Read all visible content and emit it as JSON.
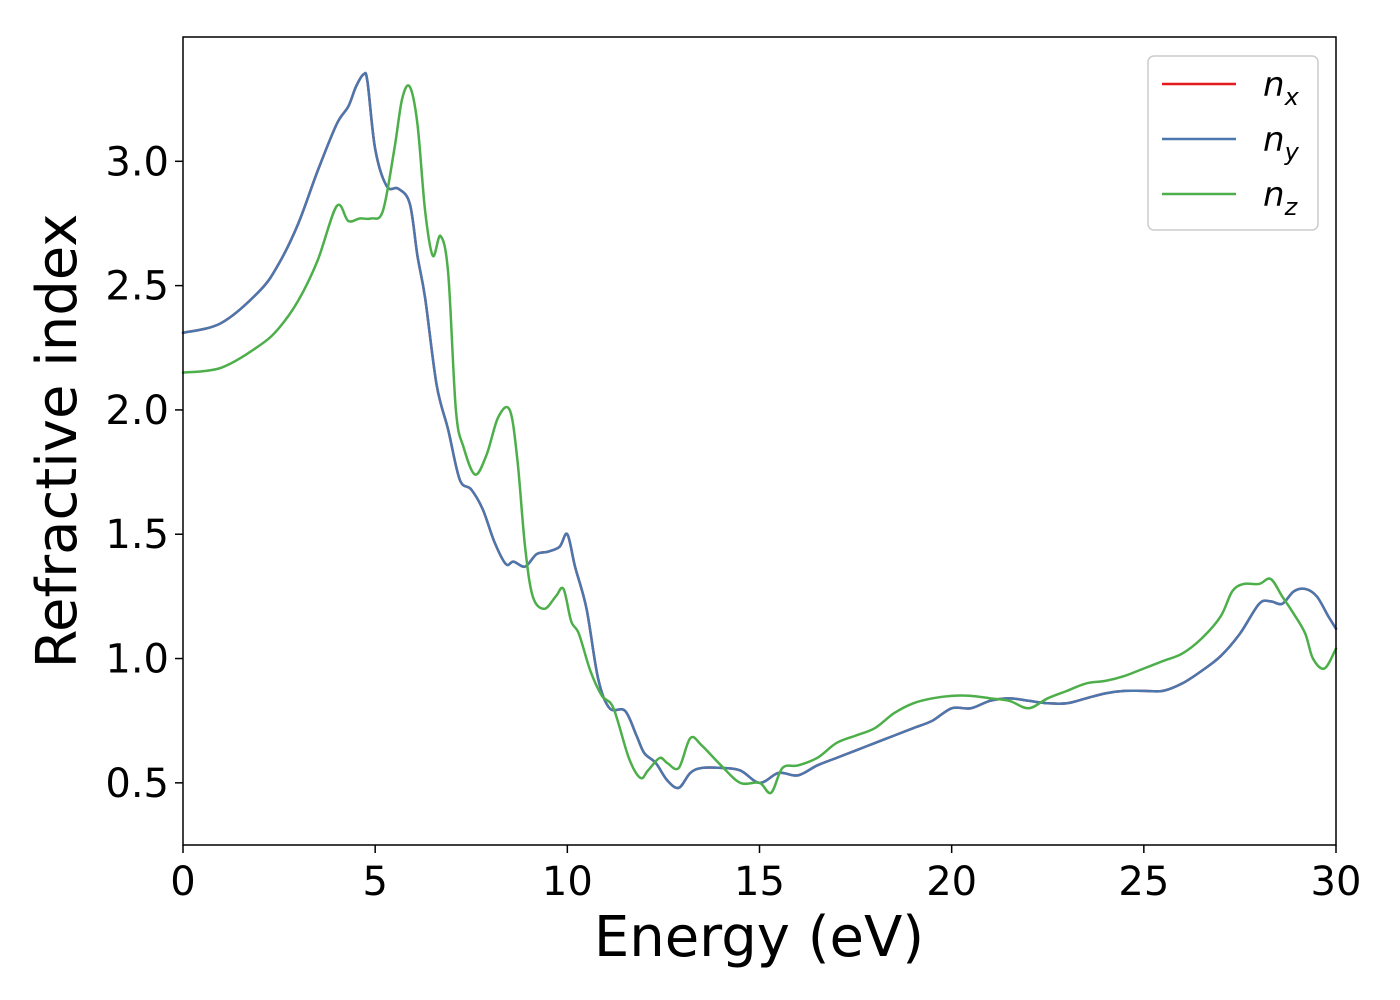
{
  "chart_data": {
    "type": "line",
    "title": "",
    "xlabel": "Energy (eV)",
    "ylabel": "Refractive index",
    "xlim": [
      0,
      30
    ],
    "ylim": [
      0.25,
      3.5
    ],
    "xticks": [
      0,
      5,
      10,
      15,
      20,
      25,
      30
    ],
    "xtick_labels": [
      "0",
      "5",
      "10",
      "15",
      "20",
      "25",
      "30"
    ],
    "yticks": [
      0.5,
      1.0,
      1.5,
      2.0,
      2.5,
      3.0
    ],
    "ytick_labels": [
      "0.5",
      "1.0",
      "1.5",
      "2.0",
      "2.5",
      "3.0"
    ],
    "grid": false,
    "legend_position": "top-right",
    "series": [
      {
        "name": "n_x",
        "legend_base": "n",
        "legend_sub": "x",
        "color": "#e41a1c",
        "x": [
          0,
          1,
          2,
          2.5,
          3,
          3.5,
          4,
          4.3,
          4.5,
          4.7,
          4.8,
          5.0,
          5.3,
          5.6,
          5.9,
          6.1,
          6.3,
          6.6,
          6.9,
          7.2,
          7.5,
          7.8,
          8.1,
          8.4,
          8.6,
          8.9,
          9.2,
          9.5,
          9.8,
          10.0,
          10.2,
          10.5,
          10.8,
          11.1,
          11.5,
          11.8,
          12.0,
          12.3,
          12.6,
          12.9,
          13.2,
          13.5,
          14.0,
          14.5,
          15.0,
          15.5,
          16.0,
          16.5,
          17.0,
          17.5,
          18.0,
          18.5,
          19.0,
          19.5,
          20.0,
          20.5,
          21.0,
          21.5,
          22.0,
          22.5,
          23.0,
          23.5,
          24.0,
          24.5,
          25.0,
          25.5,
          26.0,
          26.5,
          27.0,
          27.5,
          28.0,
          28.3,
          28.6,
          28.9,
          29.2,
          29.5,
          29.8,
          30.0
        ],
        "y": [
          2.31,
          2.35,
          2.48,
          2.59,
          2.75,
          2.96,
          3.15,
          3.22,
          3.3,
          3.35,
          3.32,
          3.05,
          2.9,
          2.89,
          2.83,
          2.62,
          2.45,
          2.1,
          1.92,
          1.72,
          1.68,
          1.6,
          1.47,
          1.38,
          1.39,
          1.37,
          1.42,
          1.43,
          1.45,
          1.5,
          1.37,
          1.2,
          0.92,
          0.8,
          0.79,
          0.69,
          0.62,
          0.58,
          0.51,
          0.48,
          0.54,
          0.56,
          0.56,
          0.55,
          0.5,
          0.54,
          0.53,
          0.57,
          0.6,
          0.63,
          0.66,
          0.69,
          0.72,
          0.75,
          0.8,
          0.8,
          0.83,
          0.84,
          0.83,
          0.82,
          0.82,
          0.84,
          0.86,
          0.87,
          0.87,
          0.87,
          0.9,
          0.95,
          1.01,
          1.1,
          1.22,
          1.23,
          1.22,
          1.27,
          1.28,
          1.25,
          1.17,
          1.12
        ]
      },
      {
        "name": "n_y",
        "legend_base": "n",
        "legend_sub": "y",
        "color": "#4a78ae",
        "x": [
          0,
          1,
          2,
          2.5,
          3,
          3.5,
          4,
          4.3,
          4.5,
          4.7,
          4.8,
          5.0,
          5.3,
          5.6,
          5.9,
          6.1,
          6.3,
          6.6,
          6.9,
          7.2,
          7.5,
          7.8,
          8.1,
          8.4,
          8.6,
          8.9,
          9.2,
          9.5,
          9.8,
          10.0,
          10.2,
          10.5,
          10.8,
          11.1,
          11.5,
          11.8,
          12.0,
          12.3,
          12.6,
          12.9,
          13.2,
          13.5,
          14.0,
          14.5,
          15.0,
          15.5,
          16.0,
          16.5,
          17.0,
          17.5,
          18.0,
          18.5,
          19.0,
          19.5,
          20.0,
          20.5,
          21.0,
          21.5,
          22.0,
          22.5,
          23.0,
          23.5,
          24.0,
          24.5,
          25.0,
          25.5,
          26.0,
          26.5,
          27.0,
          27.5,
          28.0,
          28.3,
          28.6,
          28.9,
          29.2,
          29.5,
          29.8,
          30.0
        ],
        "y": [
          2.31,
          2.35,
          2.48,
          2.59,
          2.75,
          2.96,
          3.15,
          3.22,
          3.3,
          3.35,
          3.32,
          3.05,
          2.9,
          2.89,
          2.83,
          2.62,
          2.45,
          2.1,
          1.92,
          1.72,
          1.68,
          1.6,
          1.47,
          1.38,
          1.39,
          1.37,
          1.42,
          1.43,
          1.45,
          1.5,
          1.37,
          1.2,
          0.92,
          0.8,
          0.79,
          0.69,
          0.62,
          0.58,
          0.51,
          0.48,
          0.54,
          0.56,
          0.56,
          0.55,
          0.5,
          0.54,
          0.53,
          0.57,
          0.6,
          0.63,
          0.66,
          0.69,
          0.72,
          0.75,
          0.8,
          0.8,
          0.83,
          0.84,
          0.83,
          0.82,
          0.82,
          0.84,
          0.86,
          0.87,
          0.87,
          0.87,
          0.9,
          0.95,
          1.01,
          1.1,
          1.22,
          1.23,
          1.22,
          1.27,
          1.28,
          1.25,
          1.17,
          1.12
        ]
      },
      {
        "name": "n_z",
        "legend_base": "n",
        "legend_sub": "z",
        "color": "#4daf4a",
        "x": [
          0,
          1,
          2,
          2.5,
          3,
          3.5,
          4,
          4.3,
          4.6,
          4.9,
          5.2,
          5.5,
          5.7,
          5.9,
          6.1,
          6.3,
          6.5,
          6.7,
          6.9,
          7.1,
          7.3,
          7.6,
          7.9,
          8.2,
          8.5,
          8.7,
          8.9,
          9.1,
          9.4,
          9.7,
          9.9,
          10.1,
          10.3,
          10.6,
          10.9,
          11.2,
          11.6,
          11.9,
          12.1,
          12.4,
          12.6,
          12.9,
          13.2,
          13.5,
          14.0,
          14.5,
          15.0,
          15.3,
          15.6,
          16.0,
          16.5,
          17.0,
          17.5,
          18.0,
          18.5,
          19.0,
          19.5,
          20.0,
          20.5,
          21.0,
          21.5,
          22.0,
          22.5,
          23.0,
          23.5,
          24.0,
          24.5,
          25.0,
          25.5,
          26.0,
          26.5,
          27.0,
          27.3,
          27.6,
          28.0,
          28.3,
          28.6,
          28.9,
          29.2,
          29.4,
          29.7,
          30.0
        ],
        "y": [
          2.15,
          2.17,
          2.26,
          2.33,
          2.44,
          2.6,
          2.82,
          2.76,
          2.77,
          2.77,
          2.8,
          3.05,
          3.25,
          3.3,
          3.15,
          2.8,
          2.62,
          2.7,
          2.55,
          2.0,
          1.85,
          1.74,
          1.82,
          1.97,
          2.0,
          1.8,
          1.45,
          1.25,
          1.2,
          1.25,
          1.28,
          1.15,
          1.1,
          0.95,
          0.85,
          0.8,
          0.6,
          0.52,
          0.55,
          0.6,
          0.58,
          0.56,
          0.68,
          0.65,
          0.57,
          0.5,
          0.5,
          0.46,
          0.56,
          0.57,
          0.6,
          0.66,
          0.69,
          0.72,
          0.78,
          0.82,
          0.84,
          0.85,
          0.85,
          0.84,
          0.83,
          0.8,
          0.84,
          0.87,
          0.9,
          0.91,
          0.93,
          0.96,
          0.99,
          1.02,
          1.08,
          1.17,
          1.27,
          1.3,
          1.3,
          1.32,
          1.25,
          1.18,
          1.1,
          1.0,
          0.96,
          1.04
        ]
      }
    ]
  }
}
